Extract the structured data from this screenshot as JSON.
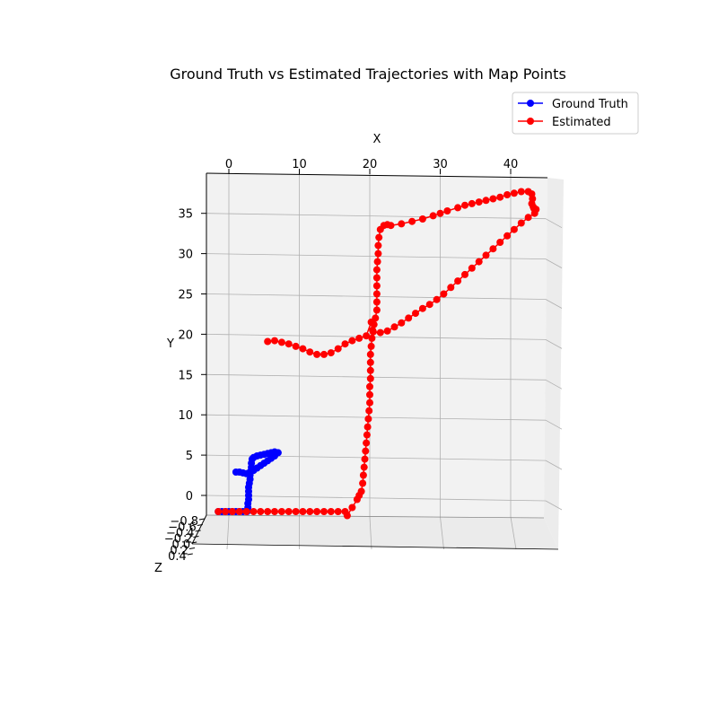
{
  "chart_data": {
    "type": "scatter",
    "projection": "3d",
    "title": "Ground Truth vs Estimated Trajectories with Map Points",
    "xlabel": "X",
    "ylabel": "Y",
    "zlabel": "Z",
    "xlim": [
      -3,
      45
    ],
    "ylim": [
      -3,
      39
    ],
    "zlim": [
      -0.8,
      0.4
    ],
    "x_ticks": [
      "0",
      "10",
      "20",
      "30",
      "40"
    ],
    "y_ticks": [
      "0",
      "5",
      "10",
      "15",
      "20",
      "25",
      "30",
      "35"
    ],
    "z_ticks": [
      "−0.8",
      "−0.6",
      "−0.4",
      "−0.2",
      "0.0",
      "0.2",
      "0.4"
    ],
    "grid": true,
    "legend_position": "top-right",
    "series": [
      {
        "name": "Ground Truth",
        "color": "#0000ff",
        "marker": "circle",
        "points": [
          [
            -1.5,
            -2
          ],
          [
            -1.0,
            -2
          ],
          [
            -0.5,
            -2
          ],
          [
            0.0,
            -2
          ],
          [
            0.5,
            -2
          ],
          [
            1.0,
            -2
          ],
          [
            1.5,
            -2
          ],
          [
            2.0,
            -2
          ],
          [
            2.6,
            -2
          ],
          [
            2.7,
            -1.5
          ],
          [
            2.7,
            -1.0
          ],
          [
            2.8,
            -0.5
          ],
          [
            2.8,
            0.0
          ],
          [
            2.8,
            0.5
          ],
          [
            2.8,
            1.0
          ],
          [
            2.9,
            1.5
          ],
          [
            3.0,
            2.0
          ],
          [
            3.0,
            2.5
          ],
          [
            3.1,
            3.0
          ],
          [
            3.2,
            3.5
          ],
          [
            3.2,
            4.0
          ],
          [
            3.3,
            4.5
          ],
          [
            3.5,
            4.7
          ],
          [
            4.0,
            4.9
          ],
          [
            4.5,
            5.0
          ],
          [
            5.0,
            5.1
          ],
          [
            5.5,
            5.2
          ],
          [
            6.0,
            5.3
          ],
          [
            6.5,
            5.4
          ],
          [
            7.0,
            5.3
          ],
          [
            6.5,
            4.9
          ],
          [
            6.0,
            4.6
          ],
          [
            5.5,
            4.3
          ],
          [
            5.0,
            4.0
          ],
          [
            4.5,
            3.7
          ],
          [
            4.0,
            3.4
          ],
          [
            3.5,
            3.1
          ],
          [
            3.0,
            2.9
          ],
          [
            2.5,
            2.7
          ],
          [
            2.0,
            2.8
          ],
          [
            1.5,
            2.9
          ],
          [
            1.0,
            2.9
          ]
        ]
      },
      {
        "name": "Estimated",
        "color": "#ff0000",
        "marker": "circle",
        "points": [
          [
            -1.5,
            -2
          ],
          [
            -0.5,
            -2
          ],
          [
            0.5,
            -2
          ],
          [
            1.5,
            -2
          ],
          [
            2.5,
            -2
          ],
          [
            3.5,
            -2
          ],
          [
            4.5,
            -2
          ],
          [
            5.5,
            -2
          ],
          [
            6.5,
            -2
          ],
          [
            7.5,
            -2
          ],
          [
            8.5,
            -2
          ],
          [
            9.5,
            -2
          ],
          [
            10.5,
            -2
          ],
          [
            11.5,
            -2
          ],
          [
            12.5,
            -2
          ],
          [
            13.5,
            -2
          ],
          [
            14.5,
            -2
          ],
          [
            15.5,
            -2
          ],
          [
            16.5,
            -2
          ],
          [
            16.8,
            -2.5
          ],
          [
            17.5,
            -1.5
          ],
          [
            18.2,
            -0.5
          ],
          [
            18.5,
            0.0
          ],
          [
            18.8,
            0.5
          ],
          [
            19.0,
            1.5
          ],
          [
            19.1,
            2.5
          ],
          [
            19.2,
            3.5
          ],
          [
            19.3,
            4.5
          ],
          [
            19.4,
            5.5
          ],
          [
            19.5,
            6.5
          ],
          [
            19.6,
            7.5
          ],
          [
            19.7,
            8.5
          ],
          [
            19.8,
            9.5
          ],
          [
            19.9,
            10.5
          ],
          [
            20.0,
            11.5
          ],
          [
            20.0,
            12.5
          ],
          [
            20.0,
            13.5
          ],
          [
            20.1,
            14.5
          ],
          [
            20.1,
            15.5
          ],
          [
            20.1,
            16.5
          ],
          [
            20.1,
            17.5
          ],
          [
            20.2,
            18.5
          ],
          [
            20.3,
            19.5
          ],
          [
            20.4,
            20.5
          ],
          [
            20.6,
            21.2
          ],
          [
            20.8,
            22.0
          ],
          [
            21.0,
            23.0
          ],
          [
            21.0,
            24.0
          ],
          [
            21.0,
            25.0
          ],
          [
            21.0,
            26.0
          ],
          [
            21.0,
            27.0
          ],
          [
            21.0,
            28.0
          ],
          [
            21.1,
            29.0
          ],
          [
            21.2,
            30.0
          ],
          [
            21.2,
            31.0
          ],
          [
            21.3,
            32.0
          ],
          [
            21.5,
            33.0
          ],
          [
            22.0,
            33.5
          ],
          [
            22.5,
            33.6
          ],
          [
            23.0,
            33.5
          ],
          [
            24.5,
            33.7
          ],
          [
            26.0,
            34.0
          ],
          [
            27.5,
            34.3
          ],
          [
            29.0,
            34.7
          ],
          [
            30.0,
            35.0
          ],
          [
            31.0,
            35.3
          ],
          [
            32.5,
            35.7
          ],
          [
            33.5,
            36.0
          ],
          [
            34.5,
            36.2
          ],
          [
            35.5,
            36.4
          ],
          [
            36.5,
            36.6
          ],
          [
            37.5,
            36.8
          ],
          [
            38.5,
            37.0
          ],
          [
            39.5,
            37.3
          ],
          [
            40.5,
            37.5
          ],
          [
            41.5,
            37.7
          ],
          [
            42.5,
            37.7
          ],
          [
            43.0,
            37.4
          ],
          [
            43.1,
            36.8
          ],
          [
            43.0,
            36.2
          ],
          [
            43.2,
            35.8
          ],
          [
            43.5,
            35.4
          ],
          [
            43.3,
            35.6
          ],
          [
            43.6,
            35.5
          ],
          [
            43.4,
            35.0
          ],
          [
            42.5,
            34.5
          ],
          [
            41.5,
            33.8
          ],
          [
            40.5,
            33.0
          ],
          [
            39.5,
            32.2
          ],
          [
            38.5,
            31.4
          ],
          [
            37.5,
            30.6
          ],
          [
            36.5,
            29.8
          ],
          [
            35.5,
            29.0
          ],
          [
            34.5,
            28.2
          ],
          [
            33.5,
            27.4
          ],
          [
            32.5,
            26.6
          ],
          [
            31.5,
            25.8
          ],
          [
            30.5,
            25.0
          ],
          [
            29.5,
            24.3
          ],
          [
            28.5,
            23.7
          ],
          [
            27.5,
            23.2
          ],
          [
            26.5,
            22.6
          ],
          [
            25.5,
            22.0
          ],
          [
            24.5,
            21.4
          ],
          [
            23.5,
            20.9
          ],
          [
            22.5,
            20.4
          ],
          [
            21.5,
            20.2
          ],
          [
            20.5,
            20.3
          ],
          [
            20.2,
            21.5
          ],
          [
            19.5,
            19.8
          ],
          [
            18.5,
            19.5
          ],
          [
            17.5,
            19.2
          ],
          [
            16.5,
            18.8
          ],
          [
            15.5,
            18.2
          ],
          [
            14.5,
            17.7
          ],
          [
            13.5,
            17.5
          ],
          [
            12.5,
            17.5
          ],
          [
            11.5,
            17.8
          ],
          [
            10.5,
            18.2
          ],
          [
            9.5,
            18.5
          ],
          [
            8.5,
            18.8
          ],
          [
            7.5,
            19.0
          ],
          [
            6.5,
            19.2
          ],
          [
            5.5,
            19.1
          ]
        ]
      }
    ]
  }
}
